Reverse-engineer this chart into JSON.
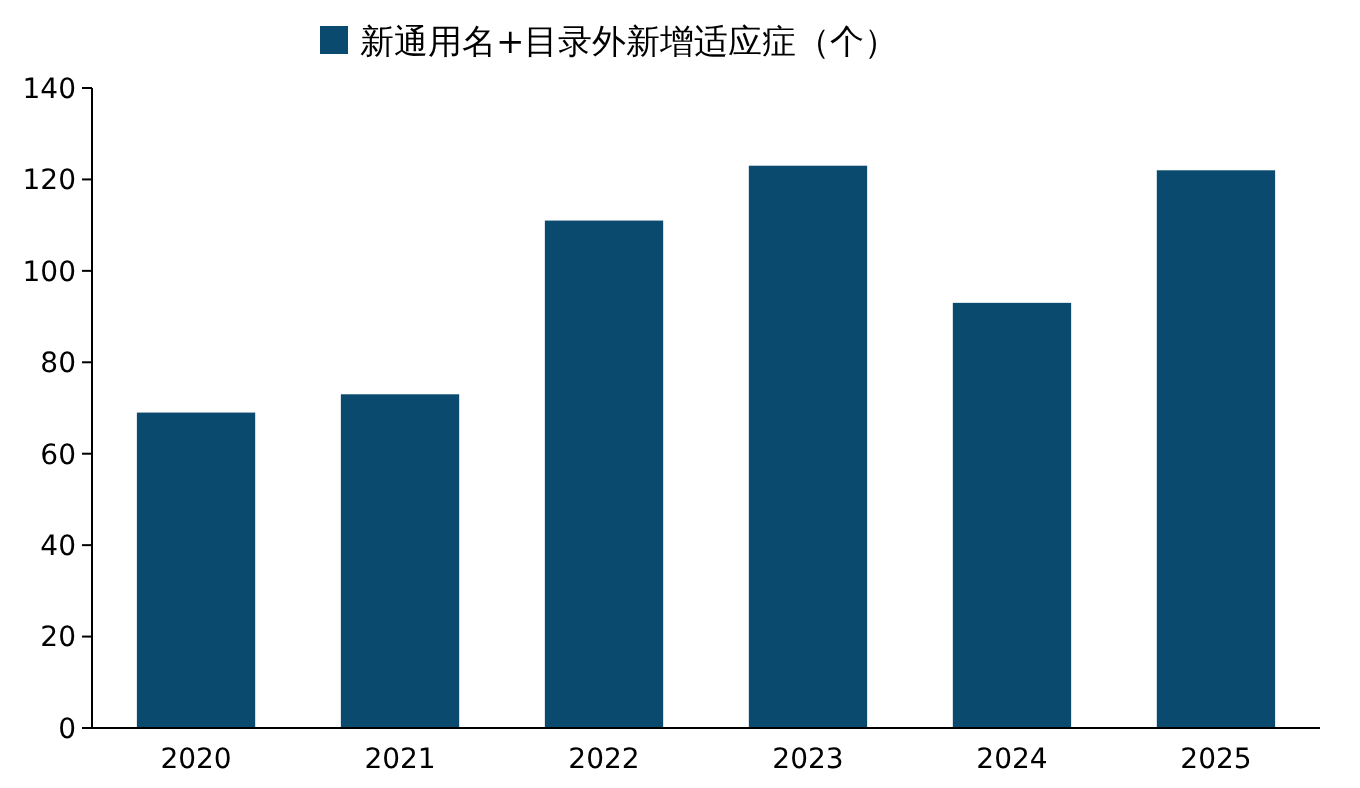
{
  "chart_data": {
    "type": "bar",
    "categories": [
      "2020",
      "2021",
      "2022",
      "2023",
      "2024",
      "2025"
    ],
    "series": [
      {
        "name": "新通用名+目录外新增适应症（个）",
        "color": "#0b4a6f",
        "values": [
          69,
          73,
          111,
          123,
          93,
          122
        ]
      }
    ],
    "ylim": [
      0,
      140
    ],
    "yticks": [
      0,
      20,
      40,
      60,
      80,
      100,
      120,
      140
    ],
    "grid": false,
    "legend": "top"
  }
}
